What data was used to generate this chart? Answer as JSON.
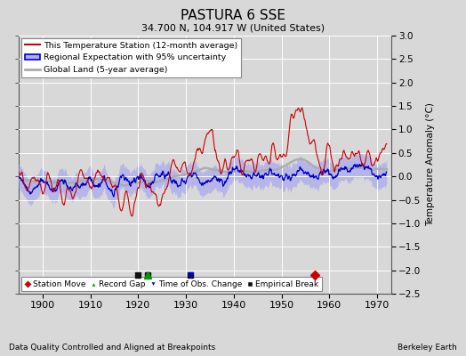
{
  "title": "PASTURA 6 SSE",
  "subtitle": "34.700 N, 104.917 W (United States)",
  "xlabel_left": "Data Quality Controlled and Aligned at Breakpoints",
  "xlabel_right": "Berkeley Earth",
  "ylabel": "Temperature Anomaly (°C)",
  "xlim": [
    1895,
    1973
  ],
  "ylim": [
    -2.5,
    3.0
  ],
  "yticks": [
    -2.5,
    -2,
    -1.5,
    -1,
    -0.5,
    0,
    0.5,
    1,
    1.5,
    2,
    2.5,
    3
  ],
  "xticks": [
    1900,
    1910,
    1920,
    1930,
    1940,
    1950,
    1960,
    1970
  ],
  "bg_color": "#d8d8d8",
  "plot_bg_color": "#d8d8d8",
  "grid_color": "#ffffff",
  "station_color": "#cc0000",
  "regional_color": "#0000cc",
  "regional_fill_color": "#aaaaee",
  "global_color": "#aaaaaa",
  "marker_y": -2.1,
  "empirical_years": [
    1920,
    1922,
    1931
  ],
  "record_gap_years": [
    1922
  ],
  "time_obs_years": [
    1931
  ],
  "station_move_years": [
    1957
  ],
  "seed": 17
}
